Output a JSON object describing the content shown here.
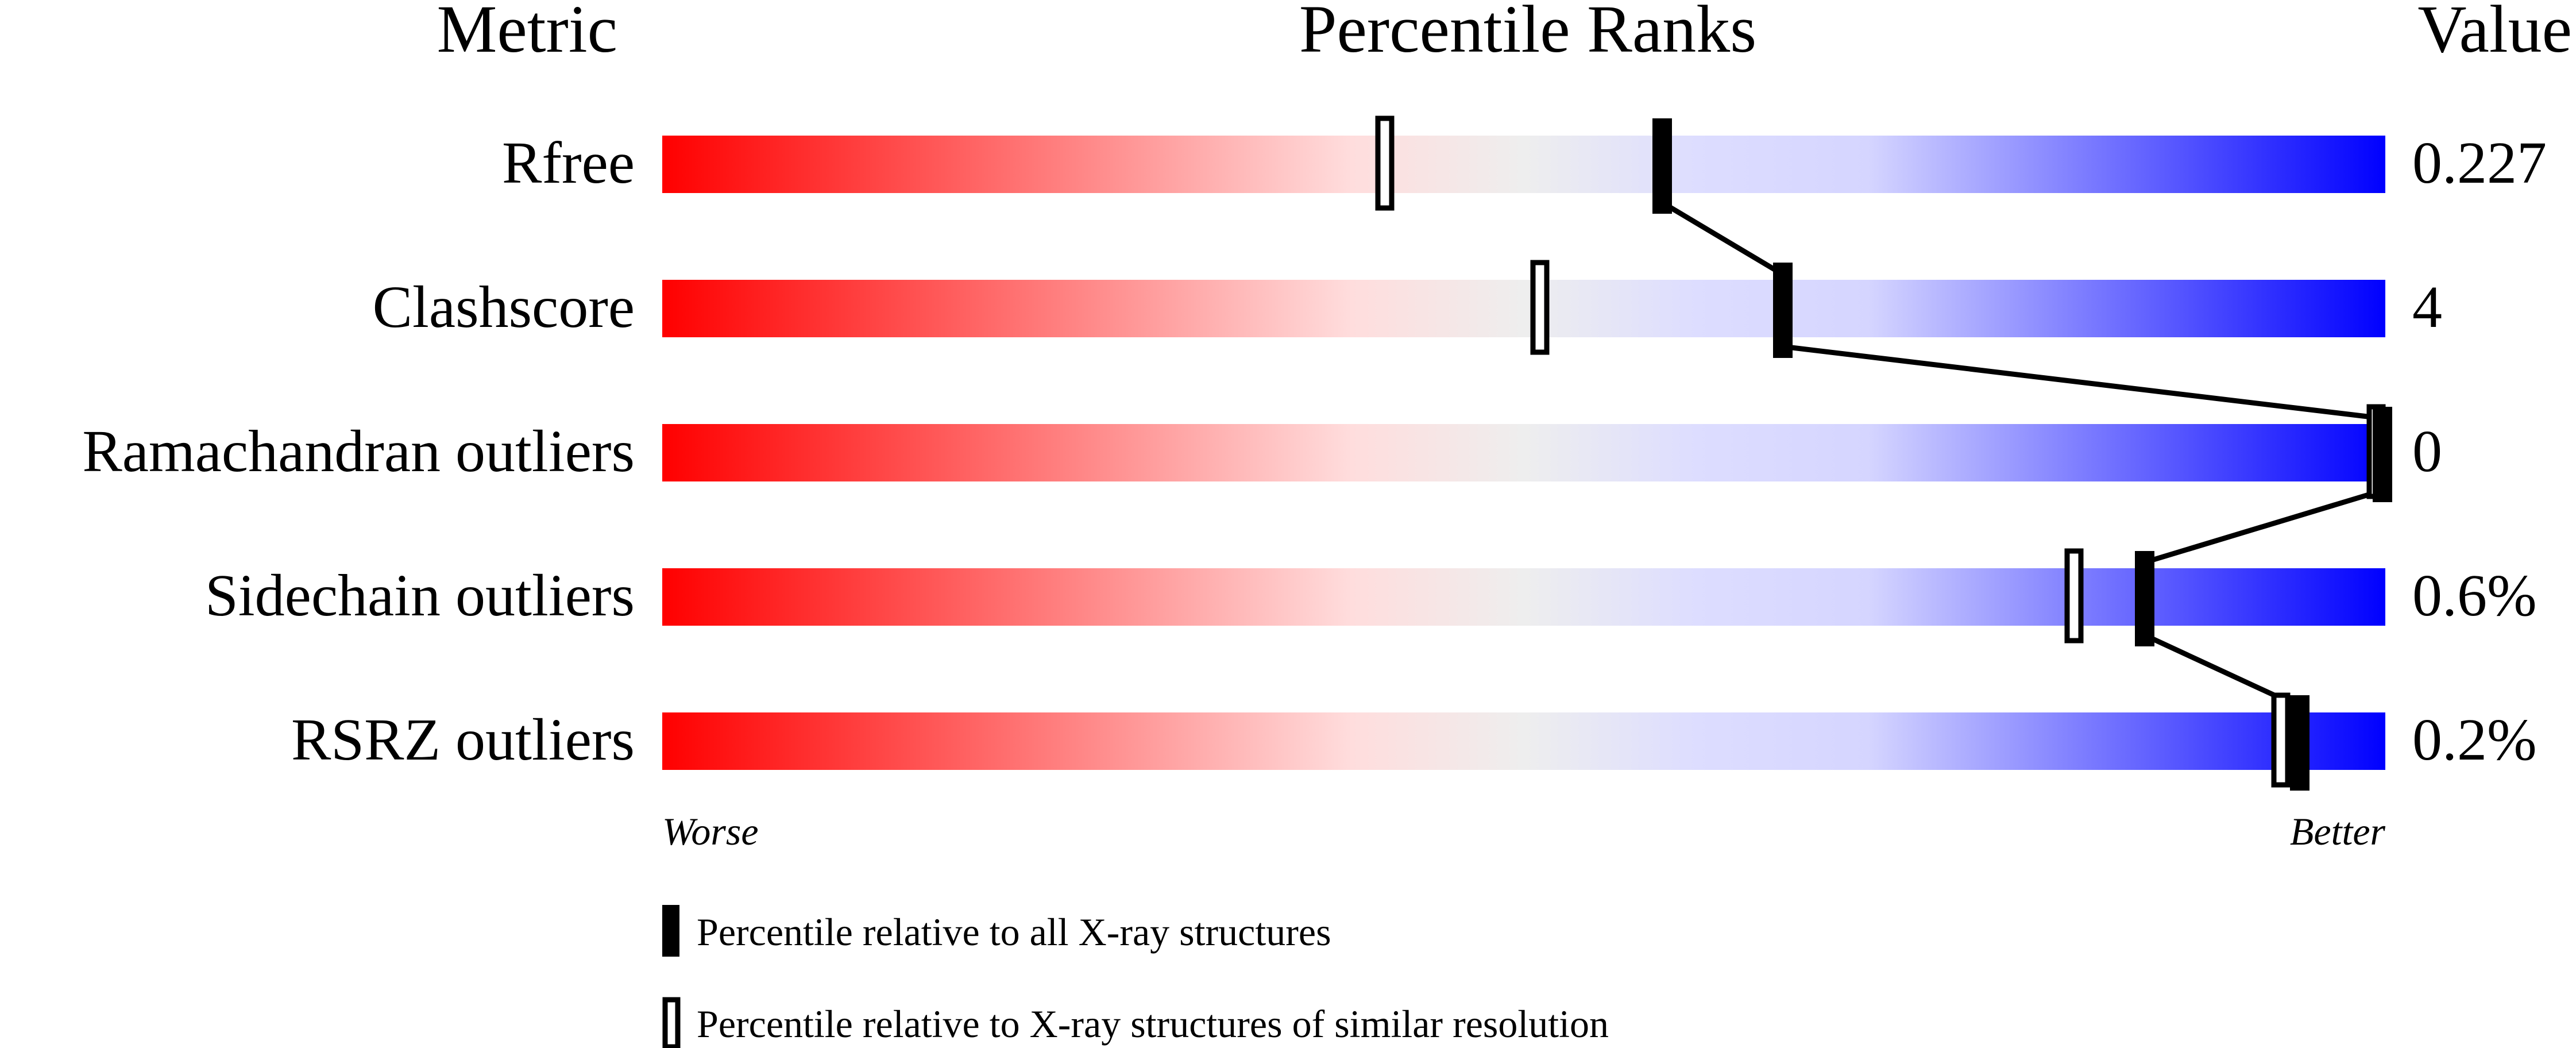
{
  "chart_data": {
    "type": "percentile-slider",
    "headers": {
      "metric": "Metric",
      "ranks": "Percentile Ranks",
      "value": "Value"
    },
    "xlim": [
      0,
      100
    ],
    "gradient_colors": [
      "#ff0000",
      "#ffdddd",
      "#eeeeee",
      "#ddddff",
      "#d5d5ff",
      "#0000ff"
    ],
    "rows": [
      {
        "metric": "Rfree",
        "value": "0.227",
        "percentile_all": 58,
        "percentile_similar": 42
      },
      {
        "metric": "Clashscore",
        "value": "4",
        "percentile_all": 65,
        "percentile_similar": 51
      },
      {
        "metric": "Ramachandran outliers",
        "value": "0",
        "percentile_all": 100,
        "percentile_similar": 100
      },
      {
        "metric": "Sidechain outliers",
        "value": "0.6%",
        "percentile_all": 86,
        "percentile_similar": 82
      },
      {
        "metric": "RSRZ outliers",
        "value": "0.2%",
        "percentile_all": 95,
        "percentile_similar": 94
      }
    ],
    "axis_labels": {
      "worse": "Worse",
      "better": "Better"
    },
    "legend": [
      {
        "marker": "filled",
        "label": "Percentile relative to all X-ray structures"
      },
      {
        "marker": "open",
        "label": "Percentile relative to X-ray structures of similar resolution"
      }
    ]
  }
}
